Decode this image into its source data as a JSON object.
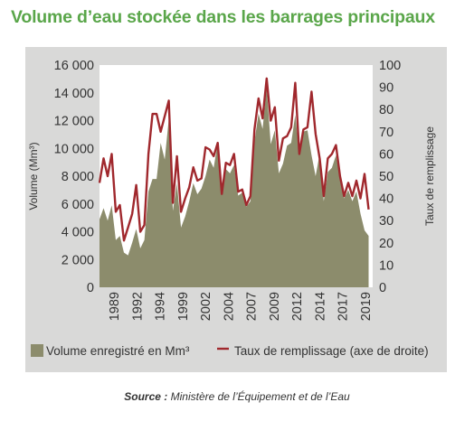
{
  "title": "Volume d’eau stockée dans les barrages principaux",
  "source": {
    "label": "Source :",
    "text": "Ministère de l’Équipement et de l’Eau"
  },
  "colors": {
    "title": "#5aa64a",
    "panel": "#d9d9d8",
    "area": "#8c8c6c",
    "line": "#a0282d",
    "text": "#333333"
  },
  "chart_data": {
    "type": "area",
    "title": "Volume d’eau stockée dans les barrages principaux",
    "ylabel_left": "Volume (Mm³)",
    "ylabel_right": "Taux de remplissage",
    "ylim_left": [
      0,
      16000
    ],
    "ylim_right": [
      0,
      100
    ],
    "yticks_left": [
      "0",
      "2 000",
      "4 000",
      "6 000",
      "8 000",
      "10 000",
      "12 000",
      "14 000",
      "16 000"
    ],
    "yticks_right": [
      "0",
      "10",
      "20",
      "30",
      "40",
      "50",
      "60",
      "70",
      "80",
      "90",
      "100"
    ],
    "xticks": [
      "1989",
      "1992",
      "1994",
      "1999",
      "2002",
      "2004",
      "2007",
      "2009",
      "2012",
      "2014",
      "2017",
      "2019"
    ],
    "xlim": [
      1987,
      2020.5
    ],
    "grid": false,
    "legend_position": "bottom",
    "series": [
      {
        "name": "Volume enregistré en Mm³",
        "axis": "left",
        "type": "area",
        "x": [
          1987,
          1987.5,
          1988,
          1988.5,
          1989,
          1989.5,
          1990,
          1990.5,
          1991,
          1991.5,
          1992,
          1992.5,
          1993,
          1993.5,
          1994,
          1994.5,
          1995,
          1995.5,
          1996,
          1996.5,
          1997,
          1997.5,
          1998,
          1998.5,
          1999,
          1999.5,
          2000,
          2000.5,
          2001,
          2001.5,
          2002,
          2002.5,
          2003,
          2003.5,
          2004,
          2004.5,
          2005,
          2005.5,
          2006,
          2006.5,
          2007,
          2007.5,
          2008,
          2008.5,
          2009,
          2009.5,
          2010,
          2010.5,
          2011,
          2011.5,
          2012,
          2012.5,
          2013,
          2013.5,
          2014,
          2014.5,
          2015,
          2015.5,
          2016,
          2016.5,
          2017,
          2017.5,
          2018,
          2018.5,
          2019,
          2019.5,
          2020
        ],
        "values": [
          4900,
          5700,
          4800,
          5900,
          3400,
          3700,
          2500,
          2300,
          3200,
          4200,
          2800,
          3400,
          6900,
          7800,
          7800,
          10400,
          9200,
          12100,
          5500,
          7500,
          4300,
          5100,
          6200,
          7500,
          6700,
          7100,
          8000,
          9200,
          8600,
          10400,
          7100,
          8500,
          8200,
          8800,
          6600,
          6800,
          5800,
          6200,
          10500,
          12500,
          11400,
          14400,
          10300,
          11300,
          8200,
          8900,
          10200,
          10400,
          12400,
          9600,
          11200,
          11300,
          9500,
          8000,
          9600,
          6200,
          8300,
          8600,
          9500,
          8000,
          6400,
          7000,
          6200,
          6900,
          5300,
          4100,
          3700
        ]
      },
      {
        "name": "Taux de remplissage (axe de droite)",
        "axis": "right",
        "type": "line",
        "x": [
          1987,
          1987.5,
          1988,
          1988.5,
          1989,
          1989.5,
          1990,
          1990.5,
          1991,
          1991.5,
          1992,
          1992.5,
          1993,
          1993.5,
          1994,
          1994.5,
          1995,
          1995.5,
          1996,
          1996.5,
          1997,
          1997.5,
          1998,
          1998.5,
          1999,
          1999.5,
          2000,
          2000.5,
          2001,
          2001.5,
          2002,
          2002.5,
          2003,
          2003.5,
          2004,
          2004.5,
          2005,
          2005.5,
          2006,
          2006.5,
          2007,
          2007.5,
          2008,
          2008.5,
          2009,
          2009.5,
          2010,
          2010.5,
          2011,
          2011.5,
          2012,
          2012.5,
          2013,
          2013.5,
          2014,
          2014.5,
          2015,
          2015.5,
          2016,
          2016.5,
          2017,
          2017.5,
          2018,
          2018.5,
          2019,
          2019.5,
          2020
        ],
        "values": [
          47,
          58,
          50,
          60,
          34,
          37,
          21,
          27,
          33,
          46,
          25,
          28,
          60,
          78,
          78,
          70,
          77,
          84,
          38,
          59,
          34,
          40,
          45,
          54,
          48,
          49,
          63,
          62,
          59,
          65,
          42,
          56,
          55,
          60,
          43,
          44,
          37,
          41,
          71,
          85,
          76,
          94,
          75,
          81,
          57,
          67,
          68,
          72,
          92,
          60,
          71,
          72,
          88,
          69,
          58,
          41,
          58,
          60,
          64,
          50,
          41,
          47,
          41,
          48,
          40,
          51,
          35
        ]
      }
    ]
  }
}
